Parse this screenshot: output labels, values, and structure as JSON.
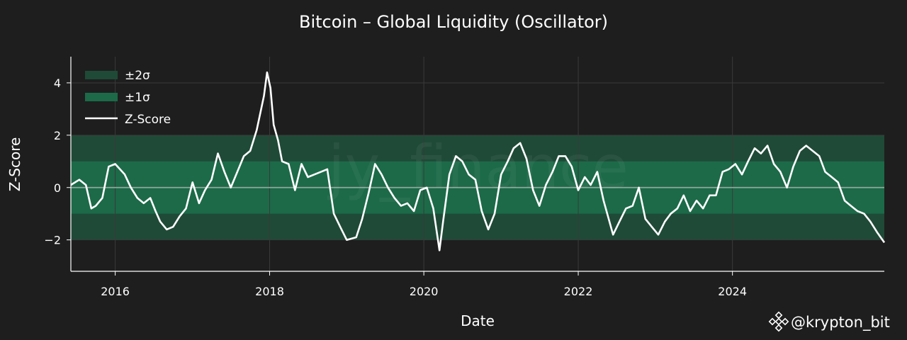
{
  "chart_data": {
    "type": "line",
    "title": "Bitcoin – Global Liquidity (Oscillator)",
    "xlabel": "Date",
    "ylabel": "Z-Score",
    "xlim": [
      "2015-06-05",
      "2025-12-20"
    ],
    "ylim": [
      -3.2,
      5.0
    ],
    "x_ticks": [
      {
        "value": "2016-01-01",
        "label": "2016"
      },
      {
        "value": "2018-01-01",
        "label": "2018"
      },
      {
        "value": "2020-01-01",
        "label": "2020"
      },
      {
        "value": "2022-01-01",
        "label": "2022"
      },
      {
        "value": "2024-01-01",
        "label": "2024"
      }
    ],
    "y_ticks": [
      {
        "value": 4,
        "label": "4"
      },
      {
        "value": 2,
        "label": "2"
      },
      {
        "value": 0,
        "label": "0"
      },
      {
        "value": -2,
        "label": "−2"
      }
    ],
    "grid": true,
    "legend_position": "top-left",
    "bands": [
      {
        "name": "±2σ",
        "lower": -2,
        "upper": 2,
        "color": "#1f4a37"
      },
      {
        "name": "±1σ",
        "lower": -1,
        "upper": 1,
        "color": "#1c6a48"
      }
    ],
    "series": [
      {
        "name": "Z-Score",
        "color": "#ffffff",
        "points": [
          [
            "2015-06-05",
            0.1
          ],
          [
            "2015-07-15",
            0.3
          ],
          [
            "2015-08-15",
            0.1
          ],
          [
            "2015-09-10",
            -0.8
          ],
          [
            "2015-10-01",
            -0.7
          ],
          [
            "2015-11-01",
            -0.4
          ],
          [
            "2015-12-01",
            0.8
          ],
          [
            "2016-01-01",
            0.9
          ],
          [
            "2016-02-15",
            0.5
          ],
          [
            "2016-03-15",
            0.0
          ],
          [
            "2016-04-15",
            -0.4
          ],
          [
            "2016-05-15",
            -0.6
          ],
          [
            "2016-06-15",
            -0.4
          ],
          [
            "2016-07-10",
            -0.9
          ],
          [
            "2016-08-01",
            -1.3
          ],
          [
            "2016-09-01",
            -1.6
          ],
          [
            "2016-10-01",
            -1.5
          ],
          [
            "2016-11-01",
            -1.1
          ],
          [
            "2016-12-01",
            -0.8
          ],
          [
            "2017-01-01",
            0.2
          ],
          [
            "2017-02-01",
            -0.6
          ],
          [
            "2017-03-01",
            -0.1
          ],
          [
            "2017-04-01",
            0.3
          ],
          [
            "2017-05-01",
            1.3
          ],
          [
            "2017-06-01",
            0.6
          ],
          [
            "2017-07-01",
            0.0
          ],
          [
            "2017-08-01",
            0.6
          ],
          [
            "2017-09-01",
            1.2
          ],
          [
            "2017-10-01",
            1.4
          ],
          [
            "2017-11-01",
            2.2
          ],
          [
            "2017-12-05",
            3.5
          ],
          [
            "2017-12-20",
            4.4
          ],
          [
            "2018-01-05",
            3.8
          ],
          [
            "2018-01-20",
            2.4
          ],
          [
            "2018-02-10",
            1.8
          ],
          [
            "2018-03-01",
            1.0
          ],
          [
            "2018-04-01",
            0.9
          ],
          [
            "2018-05-01",
            -0.1
          ],
          [
            "2018-06-01",
            0.9
          ],
          [
            "2018-07-01",
            0.4
          ],
          [
            "2018-08-01",
            0.5
          ],
          [
            "2018-09-01",
            0.6
          ],
          [
            "2018-10-01",
            0.7
          ],
          [
            "2018-11-01",
            -1.0
          ],
          [
            "2018-12-01",
            -1.5
          ],
          [
            "2019-01-01",
            -2.0
          ],
          [
            "2019-02-15",
            -1.9
          ],
          [
            "2019-03-15",
            -1.2
          ],
          [
            "2019-04-15",
            -0.2
          ],
          [
            "2019-05-15",
            0.9
          ],
          [
            "2019-06-15",
            0.5
          ],
          [
            "2019-07-15",
            0.0
          ],
          [
            "2019-08-15",
            -0.4
          ],
          [
            "2019-09-15",
            -0.7
          ],
          [
            "2019-10-15",
            -0.6
          ],
          [
            "2019-11-15",
            -0.9
          ],
          [
            "2019-12-15",
            -0.1
          ],
          [
            "2020-01-15",
            0.0
          ],
          [
            "2020-02-15",
            -0.8
          ],
          [
            "2020-03-15",
            -2.4
          ],
          [
            "2020-04-01",
            -1.3
          ],
          [
            "2020-05-01",
            0.5
          ],
          [
            "2020-06-01",
            1.2
          ],
          [
            "2020-07-01",
            1.0
          ],
          [
            "2020-08-01",
            0.5
          ],
          [
            "2020-09-01",
            0.3
          ],
          [
            "2020-10-01",
            -0.9
          ],
          [
            "2020-11-01",
            -1.6
          ],
          [
            "2020-12-01",
            -1.0
          ],
          [
            "2021-01-01",
            0.5
          ],
          [
            "2021-02-01",
            1.0
          ],
          [
            "2021-03-01",
            1.5
          ],
          [
            "2021-04-01",
            1.7
          ],
          [
            "2021-05-01",
            1.1
          ],
          [
            "2021-06-01",
            -0.1
          ],
          [
            "2021-07-01",
            -0.7
          ],
          [
            "2021-08-01",
            0.1
          ],
          [
            "2021-09-01",
            0.6
          ],
          [
            "2021-10-01",
            1.2
          ],
          [
            "2021-11-01",
            1.2
          ],
          [
            "2021-12-01",
            0.8
          ],
          [
            "2022-01-01",
            -0.1
          ],
          [
            "2022-02-01",
            0.4
          ],
          [
            "2022-03-01",
            0.1
          ],
          [
            "2022-04-01",
            0.6
          ],
          [
            "2022-05-01",
            -0.5
          ],
          [
            "2022-06-15",
            -1.8
          ],
          [
            "2022-07-15",
            -1.3
          ],
          [
            "2022-08-15",
            -0.8
          ],
          [
            "2022-09-15",
            -0.7
          ],
          [
            "2022-10-15",
            0.0
          ],
          [
            "2022-11-15",
            -1.2
          ],
          [
            "2022-12-15",
            -1.5
          ],
          [
            "2023-01-15",
            -1.8
          ],
          [
            "2023-02-15",
            -1.3
          ],
          [
            "2023-03-15",
            -1.0
          ],
          [
            "2023-04-15",
            -0.8
          ],
          [
            "2023-05-15",
            -0.3
          ],
          [
            "2023-06-15",
            -0.9
          ],
          [
            "2023-07-15",
            -0.5
          ],
          [
            "2023-08-15",
            -0.8
          ],
          [
            "2023-09-15",
            -0.3
          ],
          [
            "2023-10-15",
            -0.3
          ],
          [
            "2023-11-15",
            0.6
          ],
          [
            "2023-12-15",
            0.7
          ],
          [
            "2024-01-15",
            0.9
          ],
          [
            "2024-02-15",
            0.5
          ],
          [
            "2024-03-15",
            1.0
          ],
          [
            "2024-04-15",
            1.5
          ],
          [
            "2024-05-15",
            1.3
          ],
          [
            "2024-06-15",
            1.6
          ],
          [
            "2024-07-15",
            0.9
          ],
          [
            "2024-08-15",
            0.6
          ],
          [
            "2024-09-15",
            0.0
          ],
          [
            "2024-10-15",
            0.8
          ],
          [
            "2024-11-15",
            1.4
          ],
          [
            "2024-12-15",
            1.6
          ],
          [
            "2025-01-15",
            1.4
          ],
          [
            "2025-02-15",
            1.2
          ],
          [
            "2025-03-15",
            0.6
          ],
          [
            "2025-04-15",
            0.4
          ],
          [
            "2025-05-15",
            0.2
          ],
          [
            "2025-06-15",
            -0.5
          ],
          [
            "2025-07-15",
            -0.7
          ],
          [
            "2025-08-15",
            -0.9
          ],
          [
            "2025-09-15",
            -1.0
          ],
          [
            "2025-10-15",
            -1.3
          ],
          [
            "2025-11-15",
            -1.7
          ],
          [
            "2025-12-20",
            -2.1
          ]
        ]
      }
    ]
  },
  "watermark": {
    "text": "jy_finance"
  },
  "attribution": {
    "text": "@krypton_bit",
    "icon": "binance-logo-icon"
  },
  "colors": {
    "background": "#1e1e1e",
    "band_2sigma": "#1f4a37",
    "band_1sigma": "#1c6a48",
    "zero_line": "#8fa79a",
    "grid": "#3a3a3a",
    "line": "#ffffff"
  }
}
